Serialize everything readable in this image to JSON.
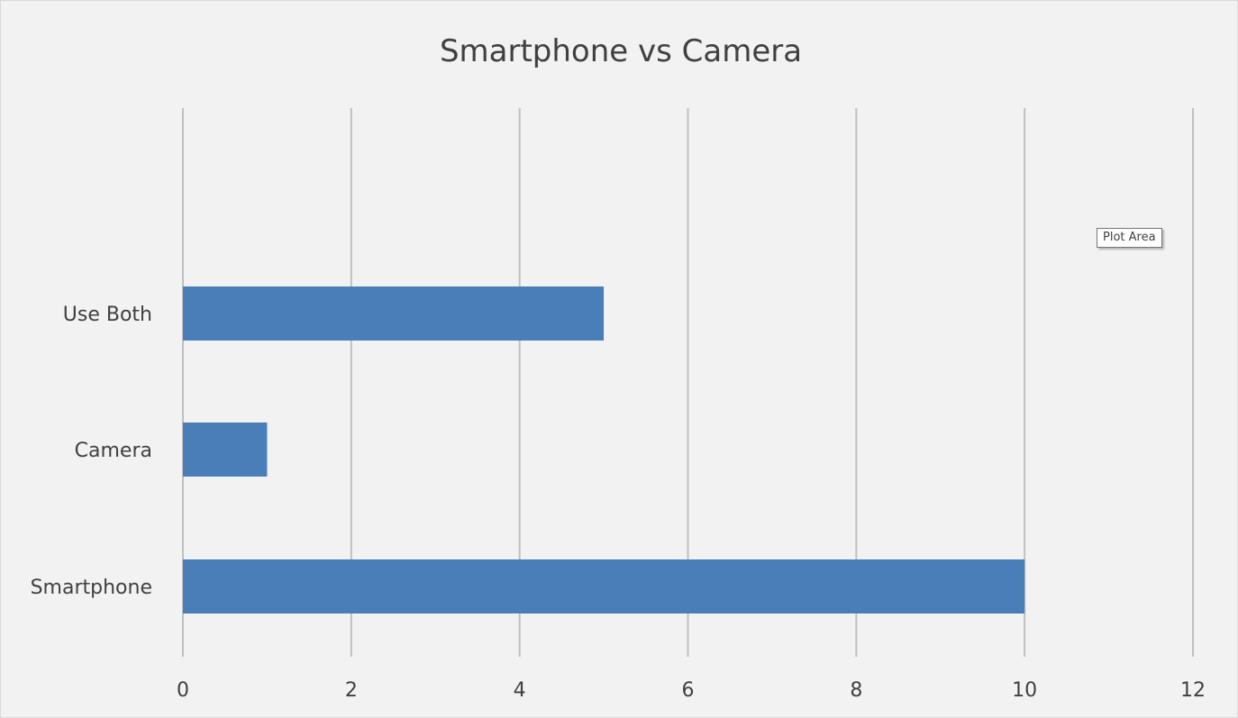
{
  "chart_data": {
    "type": "bar",
    "orientation": "horizontal",
    "title": "Smartphone vs Camera",
    "categories": [
      "Use Both",
      "Camera",
      "Smartphone"
    ],
    "values": [
      5,
      1,
      10
    ],
    "xlim": [
      0,
      12
    ],
    "x_ticks": [
      "0",
      "2",
      "4",
      "6",
      "8",
      "10",
      "12"
    ],
    "grid": "vertical",
    "legend": "none",
    "bar_color": "#4a7eb8",
    "grid_color": "#c0c0c0",
    "text_color": "#404040",
    "background": "#f2f2f2"
  },
  "tooltip": {
    "label": "Plot Area"
  }
}
